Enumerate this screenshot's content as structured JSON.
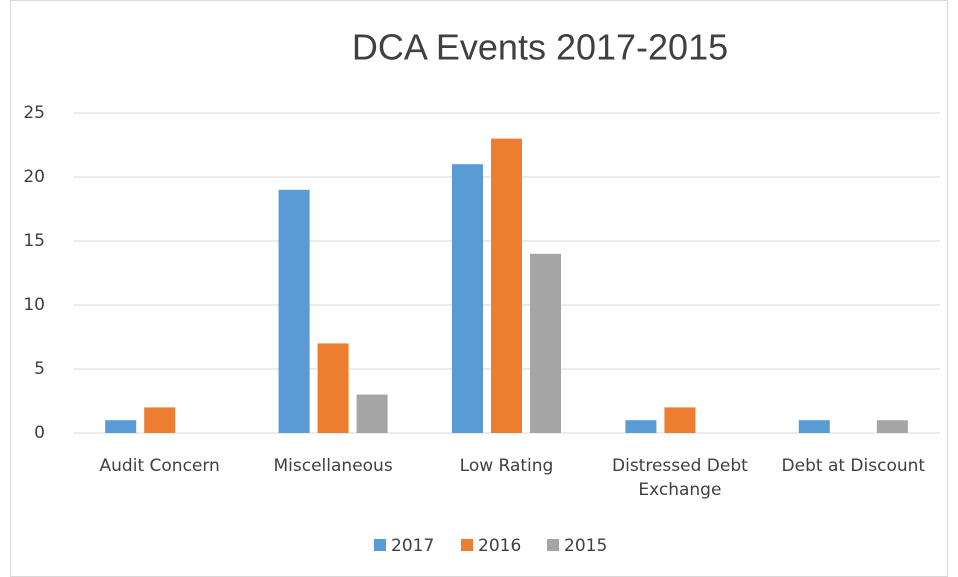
{
  "chart_data": {
    "type": "bar",
    "title": "DCA Events 2017-2015",
    "categories": [
      "Audit Concern",
      "Miscellaneous",
      "Low Rating",
      [
        "Distressed Debt",
        "Exchange"
      ],
      "Debt at Discount"
    ],
    "series": [
      {
        "name": "2017",
        "color": "#5b9bd5",
        "values": [
          1,
          19,
          21,
          1,
          1
        ]
      },
      {
        "name": "2016",
        "color": "#ed7d31",
        "values": [
          2,
          7,
          23,
          2,
          0
        ]
      },
      {
        "name": "2015",
        "color": "#a5a5a5",
        "values": [
          0,
          3,
          14,
          0,
          1
        ]
      }
    ],
    "ylim": [
      0,
      25
    ],
    "yticks": [
      0,
      5,
      10,
      15,
      20,
      25
    ],
    "grid": true,
    "legend": "bottom"
  }
}
